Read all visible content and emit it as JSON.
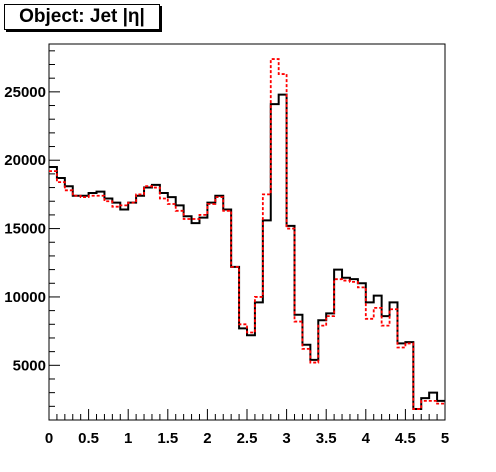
{
  "title": "Object: Jet |η|",
  "chart_data": {
    "type": "histogram",
    "title": "Object: Jet |η|",
    "xlabel": "",
    "ylabel": "",
    "xlim": [
      0,
      5
    ],
    "ylim": [
      1000,
      28500
    ],
    "x_ticks": [
      0,
      0.5,
      1,
      1.5,
      2,
      2.5,
      3,
      3.5,
      4,
      4.5,
      5
    ],
    "x_tick_labels": [
      "0",
      "0.5",
      "1",
      "1.5",
      "2",
      "2.5",
      "3",
      "3.5",
      "4",
      "4.5",
      "5"
    ],
    "y_ticks": [
      5000,
      10000,
      15000,
      20000,
      25000
    ],
    "y_tick_labels": [
      "5000",
      "10000",
      "15000",
      "20000",
      "25000"
    ],
    "bin_width": 0.1,
    "bin_edges_start": 0,
    "series": [
      {
        "color": "#000000",
        "style": "solid",
        "values": [
          19500,
          18700,
          18100,
          17400,
          17400,
          17600,
          17700,
          17200,
          16900,
          16400,
          16900,
          17400,
          18000,
          18200,
          17600,
          17300,
          16700,
          15900,
          15400,
          15800,
          16900,
          17400,
          16400,
          12200,
          7700,
          7200,
          9600,
          15600,
          24100,
          24800,
          15200,
          8700,
          6500,
          5400,
          8300,
          8800,
          12000,
          11400,
          11300,
          11000,
          9600,
          10100,
          8600,
          9600,
          6600,
          6700,
          1800,
          2600,
          3000,
          2400
        ]
      },
      {
        "color": "#ff0000",
        "style": "dashed",
        "values": [
          19200,
          18400,
          17800,
          17400,
          17300,
          17400,
          17400,
          17000,
          16600,
          16700,
          16900,
          17500,
          18100,
          18000,
          17200,
          16800,
          16300,
          15700,
          15700,
          16000,
          16800,
          17300,
          16300,
          12200,
          8000,
          7400,
          10000,
          17500,
          27400,
          26300,
          15000,
          8200,
          6200,
          5200,
          7900,
          8600,
          11300,
          11200,
          11100,
          10700,
          8400,
          9200,
          7900,
          9100,
          6300,
          6600,
          1800,
          2400,
          2400,
          2200
        ]
      }
    ],
    "grid": false,
    "legend": "none"
  }
}
